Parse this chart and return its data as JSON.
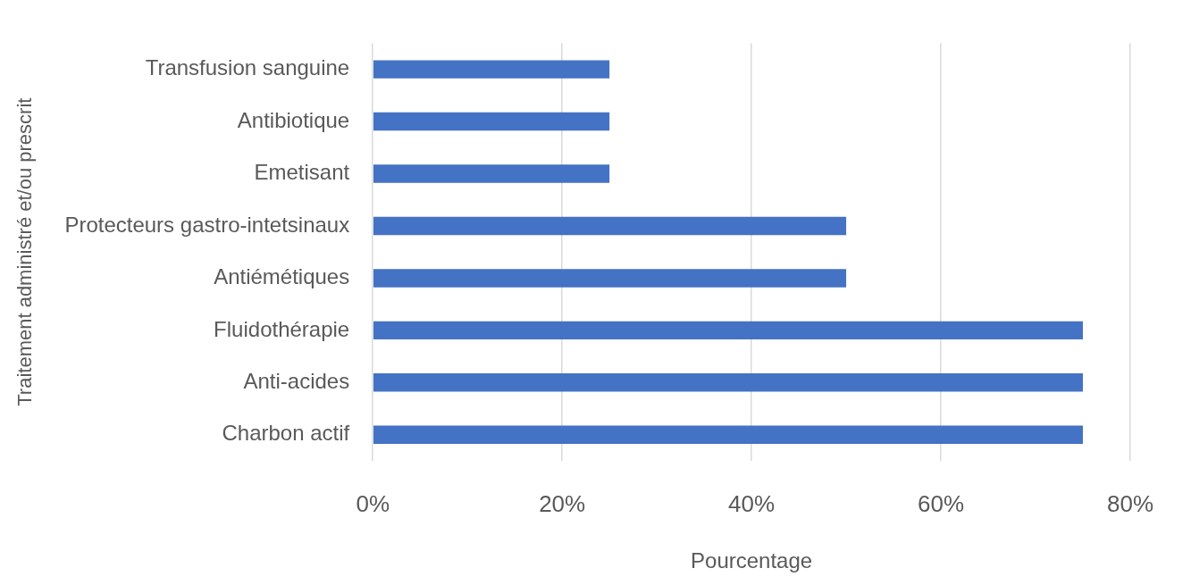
{
  "chart_data": {
    "type": "bar",
    "orientation": "horizontal",
    "categories": [
      "Transfusion sanguine",
      "Antibiotique",
      "Emetisant",
      "Protecteurs gastro-intetsinaux",
      "Antiémétiques",
      "Fluidothérapie",
      "Anti-acides",
      "Charbon actif"
    ],
    "values": [
      25,
      25,
      25,
      50,
      50,
      75,
      75,
      75
    ],
    "color": "#4472c4",
    "xlim": [
      0,
      80
    ],
    "xticks": [
      {
        "value": 0,
        "label": "0%"
      },
      {
        "value": 20,
        "label": "20%"
      },
      {
        "value": 40,
        "label": "40%"
      },
      {
        "value": 60,
        "label": "60%"
      },
      {
        "value": 80,
        "label": "80%"
      }
    ],
    "xlabel": "Pourcentage",
    "ylabel": "Traitement administré et/ou prescrit",
    "grid": "x",
    "legend": false
  }
}
